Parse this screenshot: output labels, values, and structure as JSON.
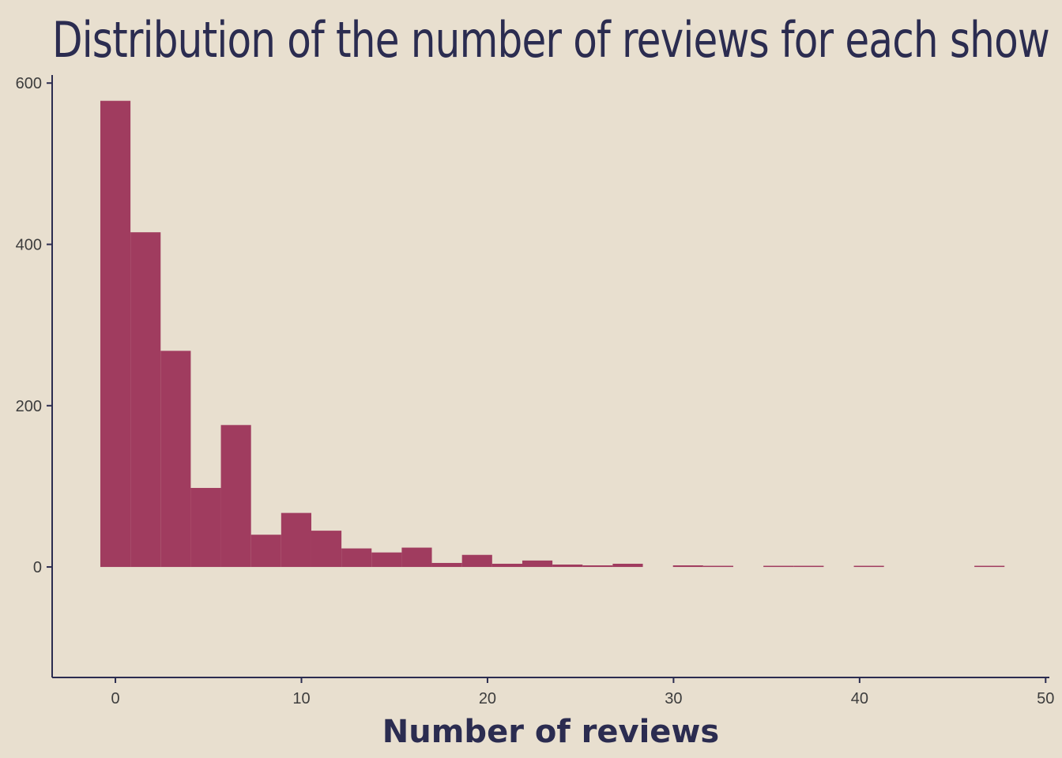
{
  "colors": {
    "background": "#e8dfcf",
    "bar": "#a03c5f",
    "text": "#2b2c50",
    "axis": "#2b2c50",
    "tick_text": "#3d3d3d"
  },
  "chart_data": {
    "type": "bar",
    "title": "Distribution of the number of reviews for each show",
    "xlabel": "Number of reviews",
    "ylabel": "",
    "xlim": [
      -3.4,
      50.2
    ],
    "ylim": [
      -137,
      610
    ],
    "xticks": [
      0,
      10,
      20,
      30,
      40,
      50
    ],
    "yticks": [
      0,
      200,
      400,
      600
    ],
    "grid": false,
    "legend": "none",
    "bin_width": 1.62,
    "bins": [
      {
        "x0": -0.81,
        "x1": 0.81,
        "value": 578
      },
      {
        "x0": 0.81,
        "x1": 2.43,
        "value": 415
      },
      {
        "x0": 2.43,
        "x1": 4.05,
        "value": 268
      },
      {
        "x0": 4.05,
        "x1": 5.67,
        "value": 98
      },
      {
        "x0": 5.67,
        "x1": 7.29,
        "value": 176
      },
      {
        "x0": 7.29,
        "x1": 8.91,
        "value": 40
      },
      {
        "x0": 8.91,
        "x1": 10.53,
        "value": 67
      },
      {
        "x0": 10.53,
        "x1": 12.15,
        "value": 45
      },
      {
        "x0": 12.15,
        "x1": 13.77,
        "value": 23
      },
      {
        "x0": 13.77,
        "x1": 15.39,
        "value": 18
      },
      {
        "x0": 15.39,
        "x1": 17.01,
        "value": 24
      },
      {
        "x0": 17.01,
        "x1": 18.63,
        "value": 5
      },
      {
        "x0": 18.63,
        "x1": 20.25,
        "value": 15
      },
      {
        "x0": 20.25,
        "x1": 21.87,
        "value": 4
      },
      {
        "x0": 21.87,
        "x1": 23.49,
        "value": 8
      },
      {
        "x0": 23.49,
        "x1": 25.11,
        "value": 3
      },
      {
        "x0": 25.11,
        "x1": 26.73,
        "value": 2
      },
      {
        "x0": 26.73,
        "x1": 28.35,
        "value": 4
      },
      {
        "x0": 28.35,
        "x1": 29.97,
        "value": 0
      },
      {
        "x0": 29.97,
        "x1": 31.59,
        "value": 2
      },
      {
        "x0": 31.59,
        "x1": 33.21,
        "value": 1
      },
      {
        "x0": 33.21,
        "x1": 34.83,
        "value": 0
      },
      {
        "x0": 34.83,
        "x1": 36.45,
        "value": 1
      },
      {
        "x0": 36.45,
        "x1": 38.07,
        "value": 1
      },
      {
        "x0": 38.07,
        "x1": 39.69,
        "value": 0
      },
      {
        "x0": 39.69,
        "x1": 41.31,
        "value": 1
      },
      {
        "x0": 41.31,
        "x1": 42.93,
        "value": 0
      },
      {
        "x0": 42.93,
        "x1": 44.55,
        "value": 0
      },
      {
        "x0": 44.55,
        "x1": 46.17,
        "value": 0
      },
      {
        "x0": 46.17,
        "x1": 47.79,
        "value": 1
      }
    ]
  }
}
